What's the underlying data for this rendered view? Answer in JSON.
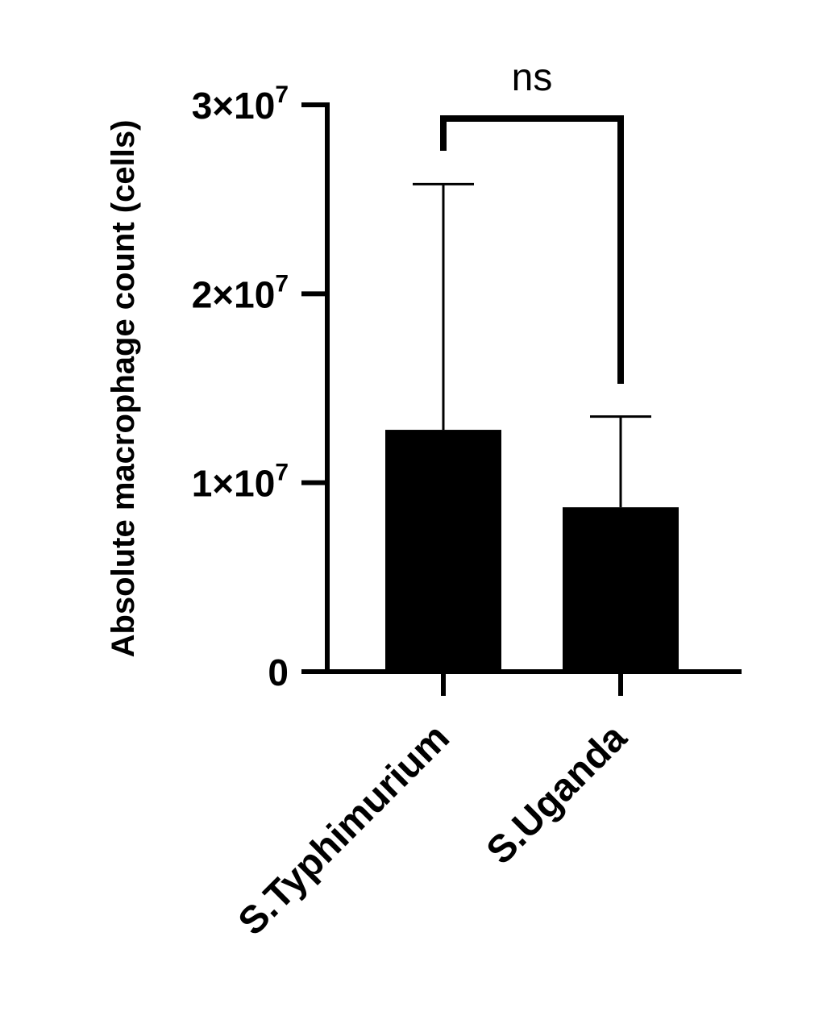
{
  "chart_data": {
    "type": "bar",
    "categories": [
      "S.Typhimurium",
      "S.Uganda"
    ],
    "values": [
      12800000,
      8700000
    ],
    "error_upper": [
      25800000,
      13500000
    ],
    "ylabel": "Absolute macrophage count (cells)",
    "xlabel": "",
    "ylim": [
      0,
      30000000
    ],
    "yticks": [
      {
        "value": 0,
        "mantissa": "0",
        "exponent": ""
      },
      {
        "value": 10000000,
        "mantissa": "1×10",
        "exponent": "7"
      },
      {
        "value": 20000000,
        "mantissa": "2×10",
        "exponent": "7"
      },
      {
        "value": 30000000,
        "mantissa": "3×10",
        "exponent": "7"
      }
    ],
    "significance": {
      "label": "ns",
      "between": [
        "S.Typhimurium",
        "S.Uganda"
      ]
    },
    "grid": false,
    "bar_color": "#000000"
  }
}
